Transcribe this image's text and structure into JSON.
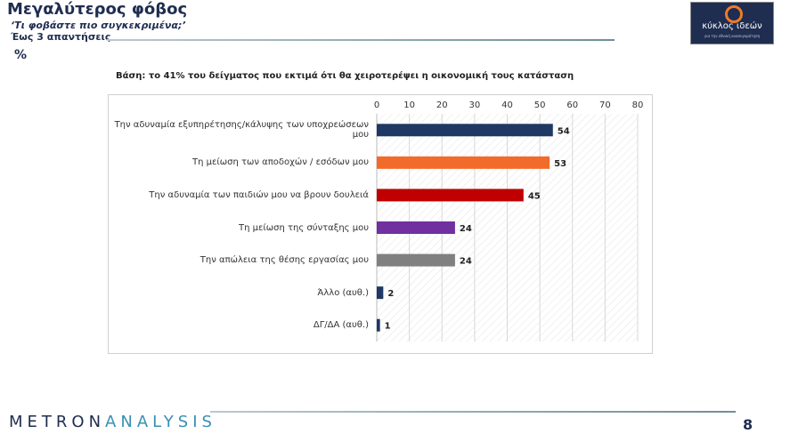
{
  "header": {
    "title": "Μεγαλύτερος φόβος",
    "subtitle": "‘Τι φοβάστε πιο συγκεκριμένα;’",
    "note": "Έως 3 απαντήσεις",
    "unit": "%"
  },
  "logo": {
    "name": "κύκλος ιδεών",
    "tagline": "για την εθνική ανασυγκρότηση",
    "ring_color": "#f07a2a"
  },
  "base_text": "Βάση: το 41% του δείγματος που εκτιμά ότι θα χειροτερέψει η οικονομική τους κατάσταση",
  "chart_data": {
    "type": "bar",
    "orientation": "horizontal",
    "categories": [
      "Την αδυναμία εξυπηρέτησης/κάλυψης  των υποχρεώσεων μου",
      "Τη μείωση των αποδοχών / εσόδων μου",
      "Την αδυναμία των παιδιών μου να βρουν δουλειά",
      "Τη μείωση της σύνταξης μου",
      "Την απώλεια της θέσης εργασίας μου",
      "Άλλο (αυθ.)",
      "ΔΓ/ΔΑ (αυθ.)"
    ],
    "values": [
      54,
      53,
      45,
      24,
      24,
      2,
      1
    ],
    "colors": [
      "#1f3864",
      "#f26b2a",
      "#c00000",
      "#7030a0",
      "#808080",
      "#1f3864",
      "#1f3864"
    ],
    "xlim": [
      0,
      80
    ],
    "ticks": [
      "0",
      "10",
      "20",
      "30",
      "40",
      "50",
      "60",
      "70",
      "80"
    ],
    "grid": true,
    "legend": "none"
  },
  "footer": {
    "brand_part1": "METRON",
    "brand_part2": "ANALYSIS",
    "page": "8"
  }
}
